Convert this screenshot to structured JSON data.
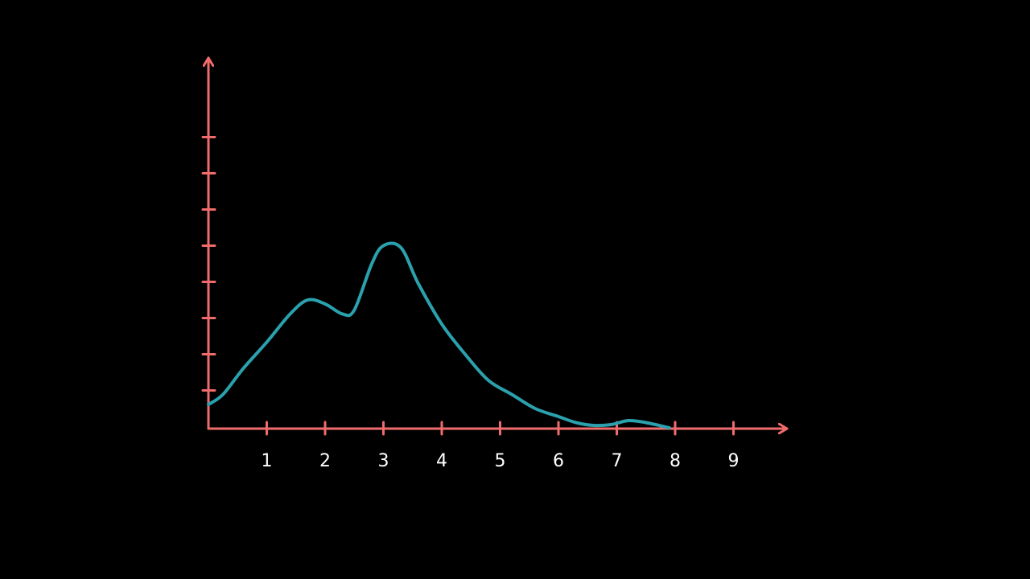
{
  "chart_data": {
    "type": "line",
    "title": "",
    "xlabel": "",
    "ylabel": "",
    "xlim": [
      0,
      10
    ],
    "ylim": [
      0,
      9
    ],
    "x_ticks": [
      "1",
      "2",
      "3",
      "4",
      "5",
      "6",
      "7",
      "8",
      "9"
    ],
    "y_tick_count": 8,
    "grid": false,
    "series": [
      {
        "color": "#2aa1ad",
        "x": [
          0,
          0.25,
          0.6,
          1.0,
          1.4,
          1.7,
          2.0,
          2.3,
          2.5,
          2.8,
          3.0,
          3.3,
          3.6,
          4.0,
          4.4,
          4.8,
          5.2,
          5.6,
          6.0,
          6.3,
          6.6,
          6.9,
          7.2,
          7.5,
          7.9
        ],
        "y": [
          0.6,
          0.85,
          1.5,
          2.15,
          2.85,
          3.2,
          3.1,
          2.85,
          2.95,
          4.1,
          4.55,
          4.5,
          3.6,
          2.6,
          1.85,
          1.2,
          0.85,
          0.5,
          0.3,
          0.15,
          0.08,
          0.1,
          0.2,
          0.15,
          0.02
        ]
      }
    ]
  },
  "colors": {
    "background": "#000000",
    "axes": "#f06b6b",
    "curve": "#2aa1ad",
    "labels": "#ffffff"
  }
}
